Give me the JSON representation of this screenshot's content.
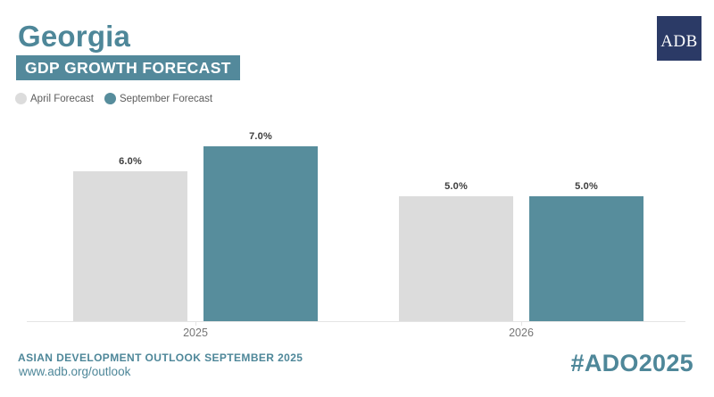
{
  "header": {
    "title": "Georgia",
    "subtitle": "GDP GROWTH FORECAST",
    "logo_text": "ADB"
  },
  "legend": {
    "items": [
      {
        "label": "April Forecast",
        "color_key": "april"
      },
      {
        "label": "September Forecast",
        "color_key": "september"
      }
    ]
  },
  "colors": {
    "april": "#dcdcdc",
    "september": "#578d9c",
    "band_teal": "#53899b",
    "title_teal": "#4e8799",
    "navy": "#2b3a66",
    "axis_line": "#e4e4e4",
    "value_label": "#3d3d3d",
    "axis_label": "#767676",
    "legend_label": "#5c5c5c"
  },
  "chart_data": {
    "type": "bar",
    "title": "Georgia GDP Growth Forecast",
    "categories": [
      "2025",
      "2026"
    ],
    "series": [
      {
        "name": "April Forecast",
        "color_key": "april",
        "values": [
          6.0,
          5.0
        ],
        "labels": [
          "6.0%",
          "5.0%"
        ]
      },
      {
        "name": "September Forecast",
        "color_key": "september",
        "values": [
          7.0,
          5.0
        ],
        "labels": [
          "7.0%",
          "5.0%"
        ]
      }
    ],
    "unit": "%",
    "ylim": [
      0,
      7.9
    ],
    "grid": false,
    "legend_position": "top-left",
    "value_labels": "above-bars"
  },
  "footer": {
    "line1": "ASIAN DEVELOPMENT OUTLOOK SEPTEMBER 2025",
    "line2": "www.adb.org/outlook",
    "hashtag": "#ADO2025"
  }
}
